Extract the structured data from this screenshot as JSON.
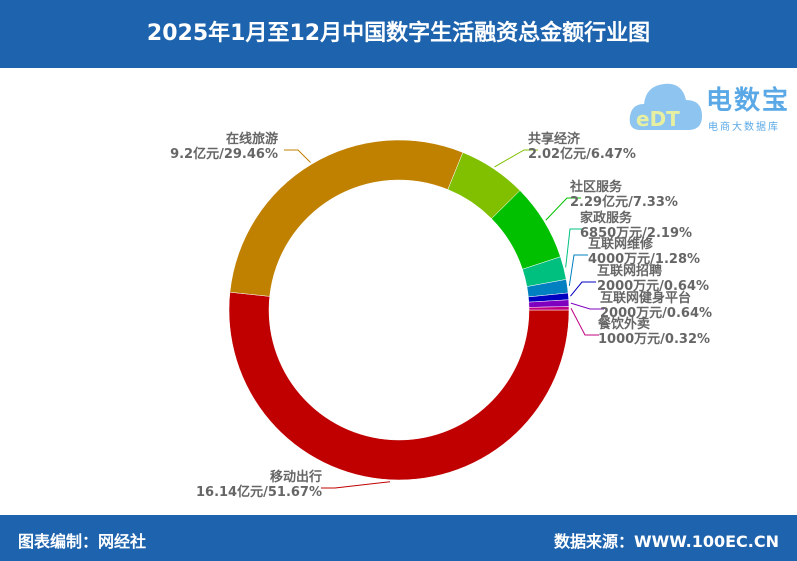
{
  "header": {
    "title": "2025年1月至12月中国数字生活融资总金额行业图"
  },
  "footer": {
    "left": "图表编制：网经社",
    "right": "数据来源：WWW.100EC.CN"
  },
  "logo": {
    "text": "电数宝",
    "subtext": "电商大数据库",
    "mark": "eDT"
  },
  "chart_data": {
    "type": "pie",
    "variant": "donut",
    "legend": "none",
    "categories": [
      "移动出行",
      "在线旅游",
      "共享经济",
      "社区服务",
      "家政服务",
      "互联网维修",
      "互联网招聘",
      "互联网健身平台",
      "餐饮外卖"
    ],
    "amounts": [
      "16.14亿元",
      "9.2亿元",
      "2.02亿元",
      "2.29亿元",
      "6850万元",
      "4000万元",
      "2000万元",
      "2000万元",
      "1000万元"
    ],
    "percents": [
      51.67,
      29.46,
      6.47,
      7.33,
      2.19,
      1.28,
      0.64,
      0.64,
      0.32
    ],
    "percent_labels": [
      "51.67%",
      "29.46%",
      "6.47%",
      "7.33%",
      "2.19%",
      "1.28%",
      "0.64%",
      "0.64%",
      "0.32%"
    ],
    "colors": [
      "#c00000",
      "#c08000",
      "#80c000",
      "#00c000",
      "#00c080",
      "#0080c0",
      "#0000c0",
      "#8000c0",
      "#c00080"
    ]
  }
}
